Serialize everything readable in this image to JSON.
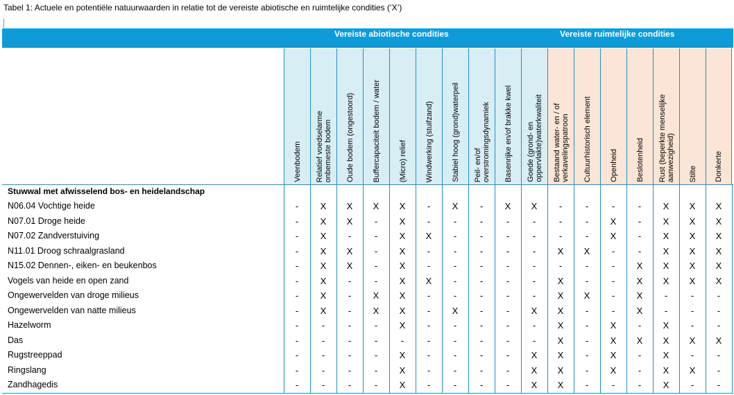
{
  "caption": "Tabel 1: Actuele en potentiële natuurwaarden in relatie tot de vereiste abiotische en ruimtelijke condities (‘X’)",
  "groups": {
    "abiotic": "Vereiste abiotische condities",
    "spatial": "Vereiste ruimtelijke condities"
  },
  "columns": [
    {
      "label": "Veenbodem",
      "group": "abiotic"
    },
    {
      "label": "Relatief voedselarme\nonbemeste bodem",
      "group": "abiotic"
    },
    {
      "label": "Oude bodem (ongestoord)",
      "group": "abiotic"
    },
    {
      "label": "Buffercapaciteit bodem / water",
      "group": "abiotic"
    },
    {
      "label": "(Micro) relief",
      "group": "abiotic"
    },
    {
      "label": "Windwerking (stuifzand)",
      "group": "abiotic"
    },
    {
      "label": "Stabiel hoog (grond)waterpeil",
      "group": "abiotic"
    },
    {
      "label": "Peil- en/of\noverstromingsdynamiek",
      "group": "abiotic"
    },
    {
      "label": "Basenrijke en/of brakke kwel",
      "group": "abiotic"
    },
    {
      "label": "Goede (grond- en\noppervlakte)waterkwaliteit",
      "group": "abiotic"
    },
    {
      "label": "Bestaand water- en / of\nverkavelingspatroon",
      "group": "spatial"
    },
    {
      "label": "Cultuurhistorisch element",
      "group": "spatial"
    },
    {
      "label": "Openheid",
      "group": "spatial"
    },
    {
      "label": "Beslotenheid",
      "group": "spatial"
    },
    {
      "label": "Rust (beperkte menselijke\naanwezigheid)",
      "group": "spatial"
    },
    {
      "label": "Stilte",
      "group": "spatial"
    },
    {
      "label": "Donkerte",
      "group": "spatial"
    }
  ],
  "section_title": "Stuwwal met afwisselend bos- en heidelandschap",
  "rows": [
    {
      "label": "N06.04 Vochtige heide",
      "cells": [
        "-",
        "X",
        "X",
        "X",
        "X",
        "-",
        "X",
        "-",
        "X",
        "X",
        "-",
        "-",
        "-",
        "-",
        "X",
        "X",
        "X"
      ]
    },
    {
      "label": "N07.01 Droge heide",
      "cells": [
        "-",
        "X",
        "X",
        "-",
        "X",
        "-",
        "-",
        "-",
        "-",
        "-",
        "-",
        "-",
        "X",
        "-",
        "X",
        "X",
        "X"
      ]
    },
    {
      "label": "N07.02 Zandverstuiving",
      "cells": [
        "-",
        "X",
        "-",
        "-",
        "X",
        "X",
        "-",
        "-",
        "-",
        "-",
        "-",
        "-",
        "X",
        "-",
        "X",
        "X",
        "X"
      ]
    },
    {
      "label": "N11.01 Droog schraalgrasland",
      "cells": [
        "-",
        "X",
        "X",
        "-",
        "X",
        "-",
        "-",
        "-",
        "-",
        "-",
        "X",
        "X",
        "-",
        "-",
        "X",
        "X",
        "X"
      ]
    },
    {
      "label": "N15.02 Dennen-, eiken- en beukenbos",
      "cells": [
        "-",
        "X",
        "X",
        "-",
        "X",
        "-",
        "-",
        "-",
        "-",
        "-",
        "-",
        "-",
        "-",
        "X",
        "X",
        "X",
        "X"
      ]
    },
    {
      "label": "Vogels van heide en open zand",
      "cells": [
        "-",
        "X",
        "-",
        "-",
        "X",
        "X",
        "-",
        "-",
        "-",
        "-",
        "X",
        "-",
        "-",
        "X",
        "X",
        "X",
        "X"
      ]
    },
    {
      "label": "Ongewervelden van droge milieus",
      "cells": [
        "-",
        "X",
        "-",
        "X",
        "X",
        "-",
        "-",
        "-",
        "-",
        "-",
        "X",
        "X",
        "-",
        "X",
        "-",
        "-",
        "-"
      ]
    },
    {
      "label": "Ongewervelden van natte milieus",
      "cells": [
        "-",
        "X",
        "-",
        "X",
        "X",
        "-",
        "X",
        "-",
        "-",
        "X",
        "X",
        "-",
        "-",
        "X",
        "-",
        "-",
        "-"
      ]
    },
    {
      "label": "Hazelworm",
      "cells": [
        "-",
        "-",
        "-",
        "-",
        "X",
        "-",
        "-",
        "-",
        "-",
        "-",
        "X",
        "-",
        "X",
        "-",
        "X",
        "-",
        "-"
      ]
    },
    {
      "label": "Das",
      "cells": [
        "-",
        "-",
        "-",
        "-",
        "-",
        "-",
        "-",
        "-",
        "-",
        "-",
        "X",
        "-",
        "X",
        "X",
        "X",
        "X",
        "X"
      ]
    },
    {
      "label": "Rugstreeppad",
      "cells": [
        "-",
        "-",
        "-",
        "-",
        "X",
        "-",
        "-",
        "-",
        "-",
        "X",
        "X",
        "-",
        "X",
        "-",
        "X",
        "-",
        "-"
      ]
    },
    {
      "label": "Ringslang",
      "cells": [
        "-",
        "-",
        "-",
        "-",
        "X",
        "-",
        "-",
        "-",
        "-",
        "X",
        "X",
        "-",
        "X",
        "-",
        "X",
        "X",
        "-"
      ]
    },
    {
      "label": "Zandhagedis",
      "cells": [
        "-",
        "-",
        "-",
        "-",
        "X",
        "-",
        "-",
        "-",
        "-",
        "X",
        "X",
        "-",
        "-",
        "-",
        "X",
        "-",
        "-"
      ]
    }
  ],
  "colors": {
    "banner": "#0f9bd7",
    "abiotic_header_bg": "#d8eef5",
    "spatial_header_bg": "#fbe5d6",
    "grid_line": "#1d90c9"
  }
}
